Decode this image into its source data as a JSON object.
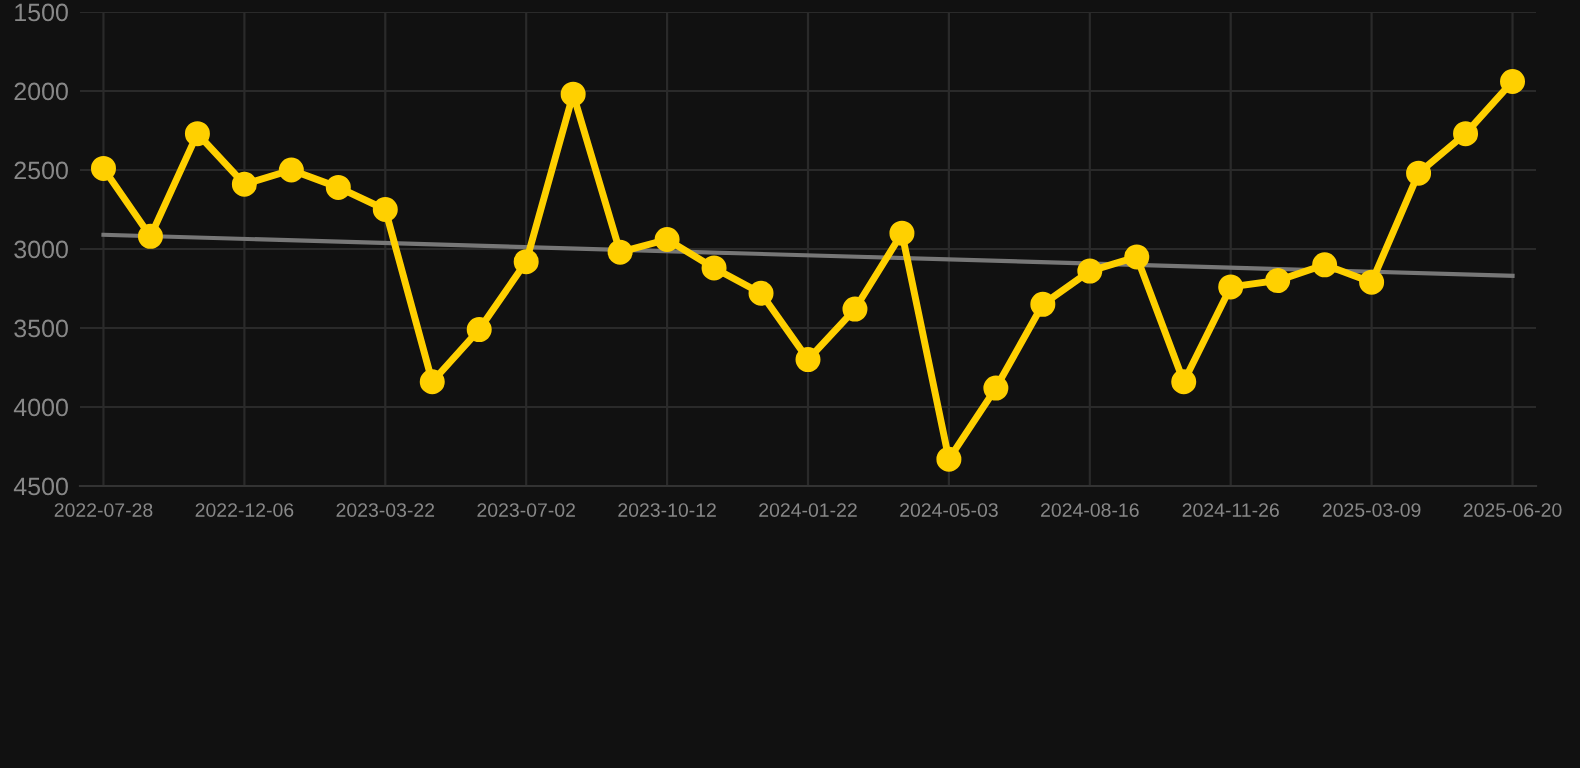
{
  "chart_data": {
    "type": "line",
    "categories": [
      "2022-07-28",
      null,
      null,
      "2022-12-06",
      null,
      null,
      "2023-03-22",
      null,
      null,
      "2023-07-02",
      null,
      null,
      "2023-10-12",
      null,
      null,
      "2024-01-22",
      null,
      null,
      "2024-05-03",
      null,
      null,
      "2024-08-16",
      null,
      null,
      "2024-11-26",
      null,
      null,
      "2025-03-09",
      null,
      null,
      "2025-06-20"
    ],
    "series": [
      {
        "color": "#ffd000",
        "marker": "circle",
        "values": [
          2490,
          2920,
          2270,
          2590,
          2500,
          2610,
          2750,
          3840,
          3510,
          3080,
          2020,
          3020,
          2940,
          3120,
          3280,
          3700,
          3380,
          2900,
          4330,
          3880,
          3350,
          3140,
          3050,
          3840,
          3240,
          3200,
          3100,
          3210,
          2520,
          2270,
          1940
        ]
      },
      {
        "color": "#777777",
        "marker": "none",
        "values": [
          2910,
          null,
          null,
          null,
          null,
          null,
          null,
          null,
          null,
          null,
          null,
          null,
          null,
          null,
          null,
          null,
          null,
          null,
          null,
          null,
          null,
          null,
          null,
          null,
          null,
          null,
          null,
          null,
          null,
          null,
          3170
        ]
      }
    ],
    "ylim": [
      4500,
      1500
    ],
    "yticks": [
      1500,
      2000,
      2500,
      3000,
      3500,
      4000,
      4500
    ],
    "grid": true
  }
}
